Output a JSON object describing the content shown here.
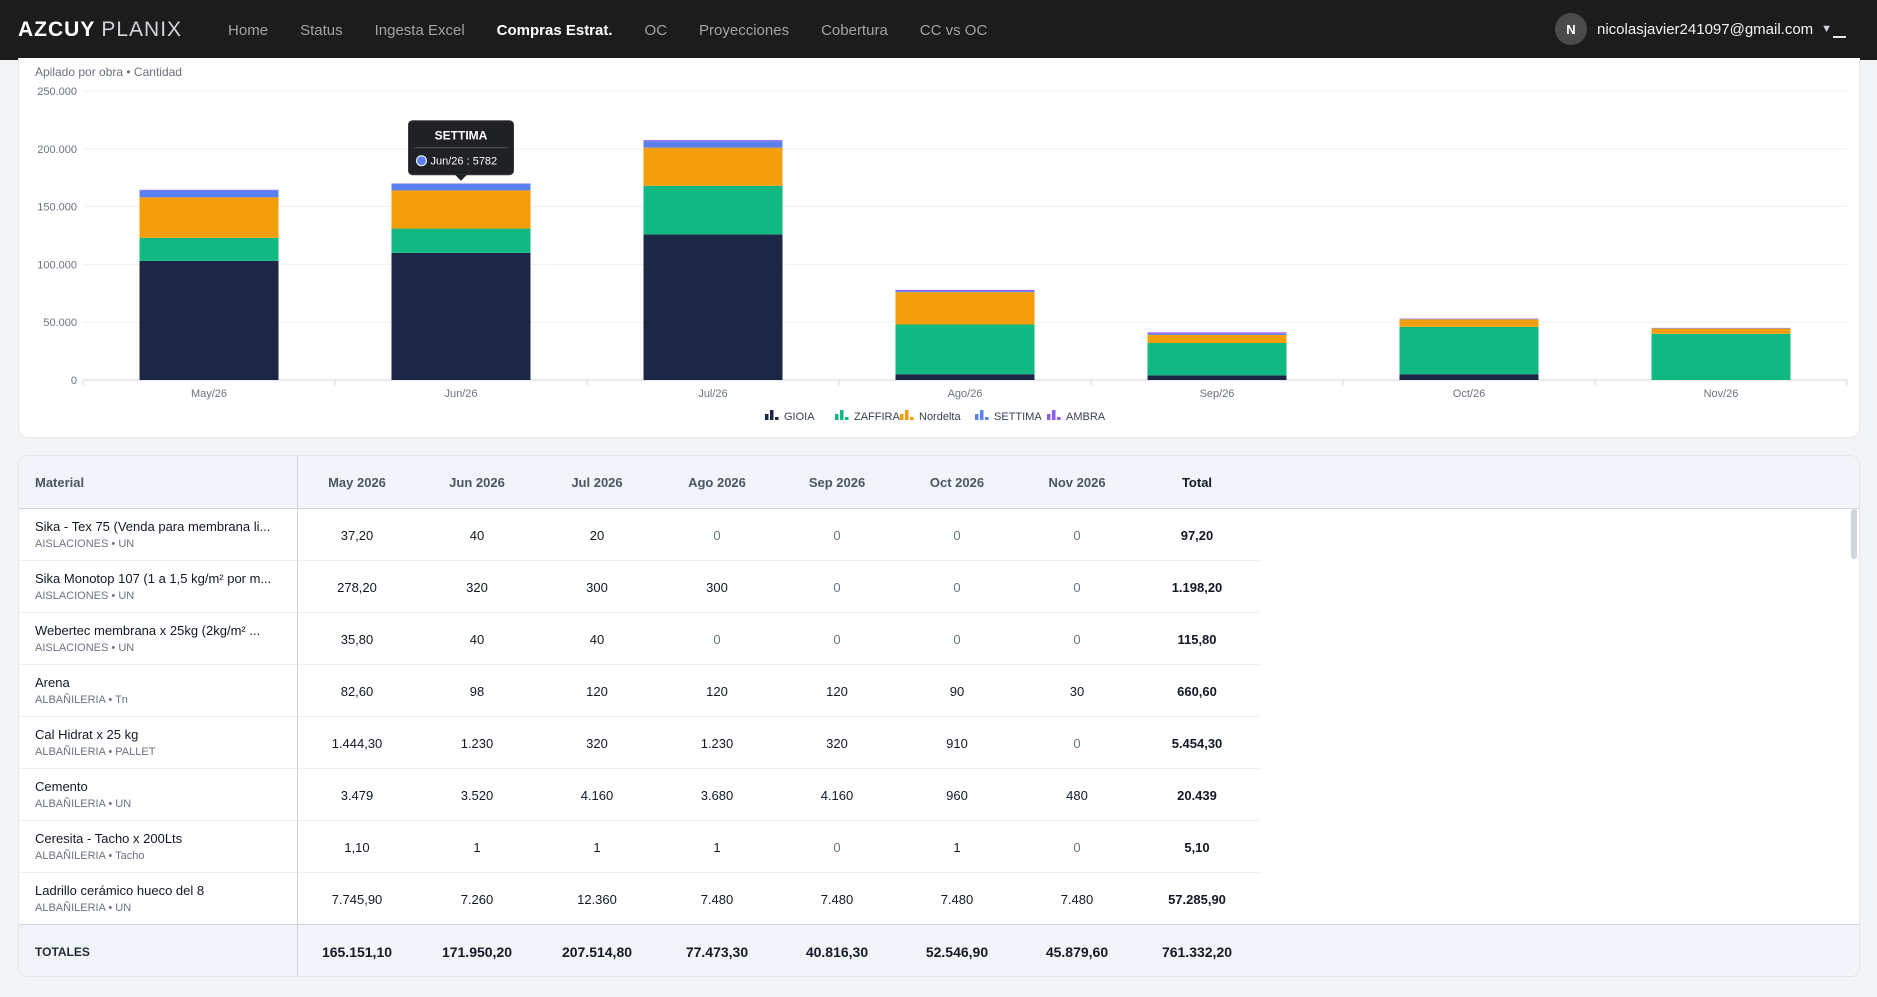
{
  "brand": {
    "bold": "AZCUY",
    "light": "PLANIX"
  },
  "nav": {
    "items": [
      {
        "label": "Home",
        "active": false
      },
      {
        "label": "Status",
        "active": false
      },
      {
        "label": "Ingesta Excel",
        "active": false
      },
      {
        "label": "Compras Estrat.",
        "active": true
      },
      {
        "label": "OC",
        "active": false
      },
      {
        "label": "Proyecciones",
        "active": false
      },
      {
        "label": "Cobertura",
        "active": false
      },
      {
        "label": "CC vs OC",
        "active": false
      }
    ],
    "user": {
      "initial": "N",
      "email": "nicolasjavier241097@gmail.com"
    }
  },
  "chart": {
    "subtitle": "Apilado por obra • Cantidad"
  },
  "chart_data": {
    "type": "bar",
    "stacked": true,
    "categories": [
      "May/26",
      "Jun/26",
      "Jul/26",
      "Ago/26",
      "Sep/26",
      "Oct/26",
      "Nov/26"
    ],
    "series": [
      {
        "name": "GIOIA",
        "color": "#1c2745",
        "values": [
          103000,
          110000,
          126000,
          5000,
          4000,
          5000,
          0
        ]
      },
      {
        "name": "ZAFFIRA",
        "color": "#10b981",
        "values": [
          20000,
          21000,
          42000,
          43000,
          28000,
          41000,
          40000
        ]
      },
      {
        "name": "Nordelta",
        "color": "#f59e0b",
        "values": [
          35000,
          33000,
          33000,
          28000,
          7000,
          6500,
          4500
        ]
      },
      {
        "name": "SETTIMA",
        "color": "#5b80ef",
        "values": [
          6000,
          5782,
          5500,
          900,
          1000,
          400,
          380
        ]
      },
      {
        "name": "AMBRA",
        "color": "#8b5cf6",
        "values": [
          500,
          300,
          1000,
          1000,
          1200,
          300,
          200
        ]
      }
    ],
    "yticks": [
      "250.000",
      "200.000",
      "150.000",
      "100.000",
      "50.000",
      "0"
    ],
    "ylim": [
      0,
      250000
    ],
    "legend": "bottom",
    "tooltip": {
      "title": "SETTIMA",
      "text": "Jun/26 : 5782",
      "category_index": 1,
      "series_index": 3
    }
  },
  "table": {
    "headers": [
      "Material",
      "May 2026",
      "Jun 2026",
      "Jul 2026",
      "Ago 2026",
      "Sep 2026",
      "Oct 2026",
      "Nov 2026",
      "Total"
    ],
    "rows": [
      {
        "name": "Sika - Tex 75 (Venda para membrana li...",
        "sub": "AISLACIONES • UN",
        "values": [
          "37,20",
          "40",
          "20",
          "0",
          "0",
          "0",
          "0"
        ],
        "total": "97,20"
      },
      {
        "name": "Sika Monotop 107 (1 a 1,5 kg/m² por m...",
        "sub": "AISLACIONES • UN",
        "values": [
          "278,20",
          "320",
          "300",
          "300",
          "0",
          "0",
          "0"
        ],
        "total": "1.198,20"
      },
      {
        "name": "Webertec membrana x 25kg (2kg/m² ...",
        "sub": "AISLACIONES • UN",
        "values": [
          "35,80",
          "40",
          "40",
          "0",
          "0",
          "0",
          "0"
        ],
        "total": "115,80"
      },
      {
        "name": "Arena",
        "sub": "ALBAÑILERIA • Tn",
        "values": [
          "82,60",
          "98",
          "120",
          "120",
          "120",
          "90",
          "30"
        ],
        "total": "660,60"
      },
      {
        "name": "Cal Hidrat x 25 kg",
        "sub": "ALBAÑILERIA • PALLET",
        "values": [
          "1.444,30",
          "1.230",
          "320",
          "1.230",
          "320",
          "910",
          "0"
        ],
        "total": "5.454,30"
      },
      {
        "name": "Cemento",
        "sub": "ALBAÑILERIA • UN",
        "values": [
          "3.479",
          "3.520",
          "4.160",
          "3.680",
          "4.160",
          "960",
          "480"
        ],
        "total": "20.439"
      },
      {
        "name": "Ceresita - Tacho x 200Lts",
        "sub": "ALBAÑILERIA • Tacho",
        "values": [
          "1,10",
          "1",
          "1",
          "1",
          "0",
          "1",
          "0"
        ],
        "total": "5,10"
      },
      {
        "name": "Ladrillo cerámico hueco del 8",
        "sub": "ALBAÑILERIA • UN",
        "values": [
          "7.745,90",
          "7.260",
          "12.360",
          "7.480",
          "7.480",
          "7.480",
          "7.480"
        ],
        "total": "57.285,90"
      }
    ],
    "totals": {
      "label": "TOTALES",
      "values": [
        "165.151,10",
        "171.950,20",
        "207.514,80",
        "77.473,30",
        "40.816,30",
        "52.546,90",
        "45.879,60"
      ],
      "total": "761.332,20"
    }
  }
}
